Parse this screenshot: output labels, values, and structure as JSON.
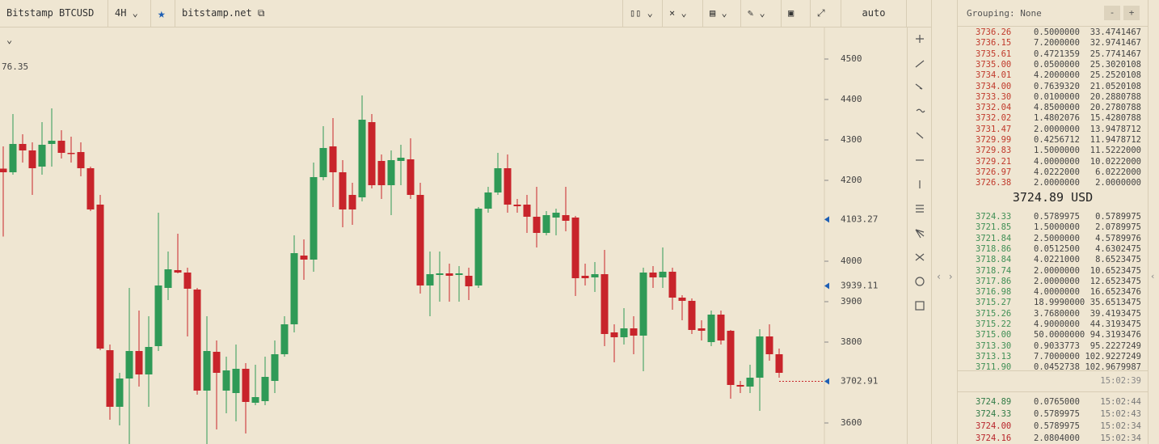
{
  "toolbar": {
    "symbol": "Bitstamp BTCUSD",
    "interval": "4H",
    "source": "bitstamp.net",
    "scale": "auto"
  },
  "chart_data": {
    "type": "candlestick",
    "up_color": "#2f9a57",
    "down_color": "#c8242b",
    "open": [
      4229,
      4220,
      4290,
      4274,
      4234,
      4290,
      4298,
      4268,
      4270,
      4230,
      4140,
      3780,
      3640,
      3710,
      3778,
      3720,
      3790,
      3934,
      3978,
      3972,
      3930,
      3680,
      3776,
      3680,
      3674,
      3734,
      3650,
      3654,
      3704,
      3770,
      3844,
      4014,
      4004,
      4208,
      4284,
      4220,
      4164,
      4158,
      4344,
      4248,
      4188,
      4248,
      4252,
      4164,
      3940,
      3966,
      3970,
      3966,
      3964,
      3940,
      4130,
      4170,
      4230,
      4140,
      4140,
      4110,
      4070,
      4108,
      4114,
      4108,
      3964,
      3960,
      3968,
      3824,
      3812,
      3834,
      3816,
      3972,
      3960,
      3974,
      3910,
      3902,
      3834,
      3800,
      3868,
      3828,
      3694,
      3690,
      3712,
      3814,
      3770
    ],
    "high": [
      4284,
      4364,
      4314,
      4294,
      4344,
      4378,
      4324,
      4308,
      4294,
      4234,
      4164,
      3794,
      3724,
      3934,
      3878,
      3864,
      4120,
      4024,
      4068,
      3984,
      3934,
      3864,
      3804,
      3764,
      3794,
      3748,
      3744,
      3764,
      3804,
      3864,
      4064,
      4054,
      4244,
      4334,
      4354,
      4250,
      4194,
      4410,
      4364,
      4264,
      4274,
      4288,
      4304,
      4194,
      4024,
      4024,
      3994,
      3988,
      3984,
      4134,
      4184,
      4268,
      4264,
      4154,
      4164,
      4184,
      4124,
      4130,
      4184,
      4112,
      3994,
      3998,
      4028,
      3844,
      3884,
      3864,
      3984,
      3988,
      4034,
      3984,
      3916,
      3908,
      3854,
      3878,
      3878,
      3830,
      3704,
      3744,
      3832,
      3844,
      3784
    ],
    "low": [
      4061,
      4214,
      4244,
      4164,
      4214,
      4234,
      4254,
      4244,
      4210,
      4124,
      3780,
      3608,
      3594,
      3546,
      3690,
      3640,
      3778,
      3904,
      3970,
      3814,
      3670,
      3546,
      3584,
      3624,
      3604,
      3574,
      3644,
      3644,
      3674,
      3764,
      3824,
      3954,
      3974,
      4200,
      4134,
      4084,
      4090,
      4148,
      4180,
      4154,
      4114,
      4188,
      4154,
      3920,
      3864,
      3900,
      3900,
      3900,
      3904,
      3934,
      4120,
      4164,
      4120,
      4120,
      4070,
      4034,
      4064,
      4064,
      4074,
      3914,
      3940,
      3924,
      3790,
      3750,
      3794,
      3770,
      3728,
      3934,
      3934,
      3880,
      3854,
      3820,
      3804,
      3790,
      3794,
      3660,
      3674,
      3674,
      3630,
      3754,
      3712
    ],
    "close": [
      4220,
      4290,
      4274,
      4230,
      4288,
      4298,
      4268,
      4266,
      4230,
      4128,
      3784,
      3640,
      3710,
      3778,
      3720,
      3788,
      3940,
      3980,
      3972,
      3932,
      3680,
      3778,
      3724,
      3730,
      3734,
      3652,
      3664,
      3714,
      3770,
      3844,
      4020,
      4004,
      4208,
      4280,
      4220,
      4128,
      4128,
      4350,
      4188,
      4188,
      4250,
      4256,
      4164,
      3940,
      3968,
      3970,
      3964,
      3970,
      3938,
      4130,
      4170,
      4230,
      4140,
      4136,
      4110,
      4070,
      4114,
      4120,
      4100,
      3958,
      3958,
      3968,
      3820,
      3812,
      3834,
      3816,
      3972,
      3960,
      3974,
      3910,
      3902,
      3830,
      3828,
      3868,
      3804,
      3694,
      3690,
      3712,
      3814,
      3770,
      3724
    ],
    "ylim": [
      3548,
      4578
    ],
    "yticks": [
      4500,
      4400,
      4300,
      4200,
      4000,
      3900,
      3800,
      3600
    ],
    "markers": [
      4103.27,
      3939.11,
      3702.91
    ],
    "marker_color": "#1e5fb4",
    "last_price": 3702.91,
    "cursor_label": "76.35"
  },
  "orderbook": {
    "grouping": "Grouping: None",
    "minus": "-",
    "plus": "+",
    "asks": [
      [
        "3736.26",
        "0.5000000",
        "33.4741467"
      ],
      [
        "3736.15",
        "7.2000000",
        "32.9741467"
      ],
      [
        "3735.61",
        "0.4721359",
        "25.7741467"
      ],
      [
        "3735.00",
        "0.0500000",
        "25.3020108"
      ],
      [
        "3734.01",
        "4.2000000",
        "25.2520108"
      ],
      [
        "3734.00",
        "0.7639320",
        "21.0520108"
      ],
      [
        "3733.30",
        "0.0100000",
        "20.2880788"
      ],
      [
        "3732.04",
        "4.8500000",
        "20.2780788"
      ],
      [
        "3732.02",
        "1.4802076",
        "15.4280788"
      ],
      [
        "3731.47",
        "2.0000000",
        "13.9478712"
      ],
      [
        "3729.99",
        "0.4256712",
        "11.9478712"
      ],
      [
        "3729.83",
        "1.5000000",
        "11.5222000"
      ],
      [
        "3729.21",
        "4.0000000",
        "10.0222000"
      ],
      [
        "3726.97",
        "4.0222000",
        "6.0222000"
      ],
      [
        "3726.38",
        "2.0000000",
        "2.0000000"
      ]
    ],
    "mid": "3724.89 USD",
    "bids": [
      [
        "3724.33",
        "0.5789975",
        "0.5789975"
      ],
      [
        "3721.85",
        "1.5000000",
        "2.0789975"
      ],
      [
        "3721.84",
        "2.5000000",
        "4.5789976"
      ],
      [
        "3718.86",
        "0.0512500",
        "4.6302475"
      ],
      [
        "3718.84",
        "4.0221000",
        "8.6523475"
      ],
      [
        "3718.74",
        "2.0000000",
        "10.6523475"
      ],
      [
        "3717.86",
        "2.0000000",
        "12.6523475"
      ],
      [
        "3716.98",
        "4.0000000",
        "16.6523476"
      ],
      [
        "3715.27",
        "18.9990000",
        "35.6513475"
      ],
      [
        "3715.26",
        "3.7680000",
        "39.4193475"
      ],
      [
        "3715.22",
        "4.9000000",
        "44.3193475"
      ],
      [
        "3715.00",
        "50.0000000",
        "94.3193476"
      ],
      [
        "3713.30",
        "0.9033773",
        "95.2227249"
      ],
      [
        "3713.13",
        "7.7000000",
        "102.9227249"
      ],
      [
        "3711.90",
        "0.0452738",
        "102.9679987"
      ]
    ],
    "time": "15:02:39",
    "trades": [
      {
        "price": "3724.89",
        "amount": "0.0765000",
        "time": "15:02:44",
        "color": "#2f7a45"
      },
      {
        "price": "3724.33",
        "amount": "0.5789975",
        "time": "15:02:43",
        "color": "#2f7a45"
      },
      {
        "price": "3724.00",
        "amount": "0.5789975",
        "time": "15:02:34",
        "color": "#b8242b"
      },
      {
        "price": "3724.16",
        "amount": "2.0804000",
        "time": "15:02:34",
        "color": "#b8242b"
      }
    ]
  }
}
